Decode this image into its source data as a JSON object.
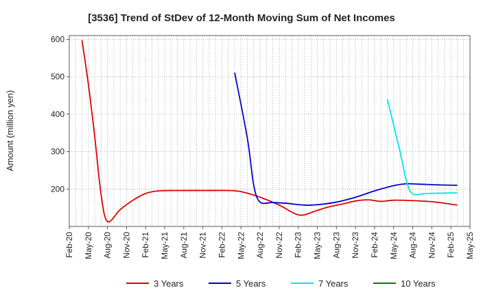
{
  "chart_data": {
    "type": "line",
    "title": "[3536]  Trend of StDev of 12-Month Moving Sum of Net Incomes",
    "ylabel": "Amount (million yen)",
    "xlabel": "",
    "ylim": [
      100,
      610
    ],
    "yticks": [
      200,
      300,
      400,
      500,
      600
    ],
    "xticks": [
      "Feb-20",
      "May-20",
      "Aug-20",
      "Nov-20",
      "Feb-21",
      "May-21",
      "Aug-21",
      "Nov-21",
      "Feb-22",
      "May-22",
      "Aug-22",
      "Nov-22",
      "Feb-23",
      "May-23",
      "Aug-23",
      "Nov-23",
      "Feb-24",
      "May-24",
      "Aug-24",
      "Nov-24",
      "Feb-25",
      "May-25"
    ],
    "grid": true,
    "legend_position": "bottom",
    "series": [
      {
        "name": "3 Years",
        "color": "#dd0000",
        "points": [
          [
            "Apr-20",
            597
          ],
          [
            "May-20",
            480
          ],
          [
            "Jun-20",
            340
          ],
          [
            "Jul-20",
            185
          ],
          [
            "Aug-20",
            113
          ],
          [
            "Oct-20",
            145
          ],
          [
            "Dec-20",
            170
          ],
          [
            "Feb-21",
            188
          ],
          [
            "Apr-21",
            195
          ],
          [
            "Jul-21",
            196
          ],
          [
            "Nov-21",
            196
          ],
          [
            "Mar-22",
            196
          ],
          [
            "May-22",
            193
          ],
          [
            "Aug-22",
            178
          ],
          [
            "Nov-22",
            157
          ],
          [
            "Jan-23",
            138
          ],
          [
            "Feb-23",
            131
          ],
          [
            "Mar-23",
            131
          ],
          [
            "May-23",
            143
          ],
          [
            "Jul-23",
            153
          ],
          [
            "Sep-23",
            160
          ],
          [
            "Nov-23",
            168
          ],
          [
            "Jan-24",
            171
          ],
          [
            "Mar-24",
            167
          ],
          [
            "May-24",
            170
          ],
          [
            "Aug-24",
            169
          ],
          [
            "Nov-24",
            166
          ],
          [
            "Jan-25",
            162
          ],
          [
            "Mar-25",
            157
          ]
        ]
      },
      {
        "name": "5 Years",
        "color": "#0000cc",
        "points": [
          [
            "Apr-22",
            511
          ],
          [
            "Jun-22",
            335
          ],
          [
            "Jul-22",
            210
          ],
          [
            "Aug-22",
            165
          ],
          [
            "Oct-22",
            164
          ],
          [
            "Dec-22",
            162
          ],
          [
            "Mar-23",
            157
          ],
          [
            "May-23",
            158
          ],
          [
            "Aug-23",
            165
          ],
          [
            "Nov-23",
            178
          ],
          [
            "Feb-24",
            195
          ],
          [
            "May-24",
            209
          ],
          [
            "Jul-24",
            214
          ],
          [
            "Sep-24",
            213
          ],
          [
            "Dec-24",
            211
          ],
          [
            "Mar-25",
            210
          ]
        ]
      },
      {
        "name": "7 Years",
        "color": "#00e5ee",
        "points": [
          [
            "Apr-24",
            440
          ],
          [
            "Jun-24",
            300
          ],
          [
            "Jul-24",
            222
          ],
          [
            "Aug-24",
            187
          ],
          [
            "Oct-24",
            188
          ],
          [
            "Jan-25",
            189
          ],
          [
            "Mar-25",
            190
          ]
        ]
      },
      {
        "name": "10 Years",
        "color": "#008000",
        "points": []
      }
    ]
  }
}
